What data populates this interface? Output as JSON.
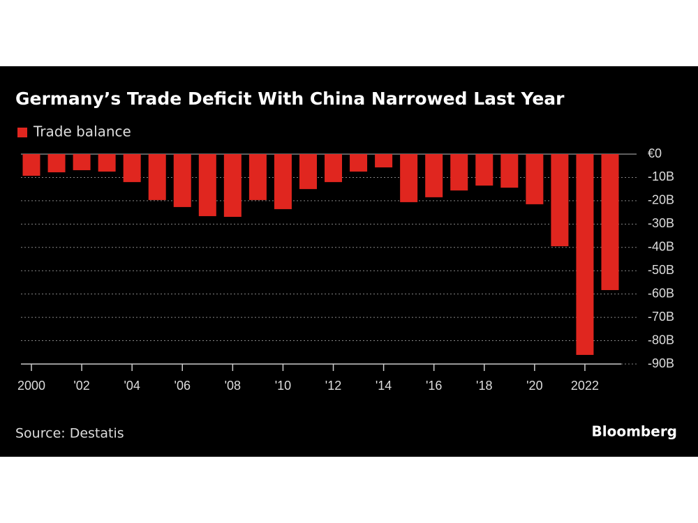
{
  "chart_data": {
    "type": "bar",
    "title": "Germany’s Trade Deficit With China Narrowed Last Year",
    "source": "Source: Destatis",
    "brand": "Bloomberg",
    "categories": [
      "2000",
      null,
      "'02",
      null,
      "'04",
      null,
      "'06",
      null,
      "'08",
      null,
      "'10",
      null,
      "'12",
      null,
      "'14",
      null,
      "'16",
      null,
      "'18",
      null,
      "'20",
      null,
      "2022",
      null
    ],
    "series": [
      {
        "name": "Trade balance",
        "color": "#e0261f",
        "values": [
          -9.3,
          -7.8,
          -6.9,
          -7.5,
          -12,
          -19.7,
          -22.7,
          -26.6,
          -26.9,
          -19.7,
          -23.6,
          -15,
          -12,
          -7.5,
          -5.7,
          -20.6,
          -18.5,
          -15.6,
          -13.5,
          -14.4,
          -21.5,
          -39.5,
          -86.1,
          -58.3
        ]
      }
    ],
    "ylim": [
      -90,
      0
    ],
    "yticks": [
      {
        "value": 0,
        "label": "€0"
      },
      {
        "value": -10,
        "label": "-10B"
      },
      {
        "value": -20,
        "label": "-20B"
      },
      {
        "value": -30,
        "label": "-30B"
      },
      {
        "value": -40,
        "label": "-40B"
      },
      {
        "value": -50,
        "label": "-50B"
      },
      {
        "value": -60,
        "label": "-60B"
      },
      {
        "value": -70,
        "label": "-70B"
      },
      {
        "value": -80,
        "label": "-80B"
      },
      {
        "value": -90,
        "label": "-90B"
      }
    ],
    "grid": true
  }
}
